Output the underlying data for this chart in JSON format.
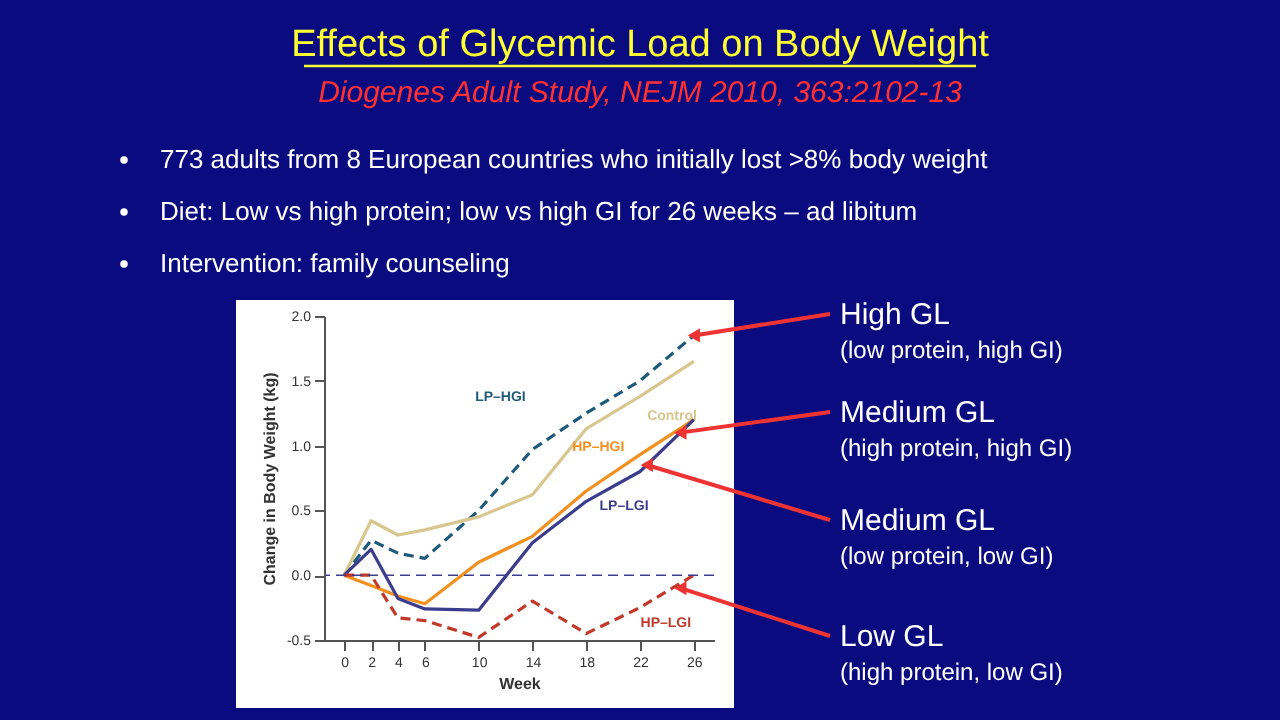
{
  "chart_data": {
    "type": "line",
    "title": "Effects of Glycemic Load on Body Weight",
    "subtitle": "Diogenes Adult Study, NEJM 2010, 363:2102-13",
    "xlabel": "Week",
    "ylabel": "Change in Body Weight (kg)",
    "x": [
      0,
      2,
      4,
      6,
      10,
      14,
      18,
      22,
      26
    ],
    "series": [
      {
        "name": "LP–HGI",
        "color": "#1f5a7a",
        "line_style": "dashed",
        "values": [
          0,
          0.27,
          0.17,
          0.13,
          0.5,
          0.97,
          1.25,
          1.5,
          1.85
        ]
      },
      {
        "name": "Control",
        "color": "#d8c68f",
        "line_style": "solid",
        "values": [
          0,
          0.42,
          0.31,
          0.35,
          0.45,
          0.62,
          1.13,
          1.38,
          1.65
        ]
      },
      {
        "name": "HP–HGI",
        "color": "#f39020",
        "line_style": "solid",
        "values": [
          0,
          -0.08,
          -0.16,
          -0.22,
          0.1,
          0.3,
          0.65,
          0.93,
          1.2
        ]
      },
      {
        "name": "LP–LGI",
        "color": "#3c3c8c",
        "line_style": "solid",
        "values": [
          0,
          0.2,
          -0.18,
          -0.26,
          -0.27,
          0.25,
          0.57,
          0.8,
          1.2
        ]
      },
      {
        "name": "HP–LGI",
        "color": "#c0392b",
        "line_style": "dashed",
        "values": [
          0,
          0,
          -0.33,
          -0.35,
          -0.48,
          -0.2,
          -0.45,
          -0.25,
          0
        ]
      }
    ],
    "xlim": [
      -1.5,
      27.5
    ],
    "ylim": [
      -0.5,
      2.0
    ],
    "xticks": [
      0,
      2,
      4,
      6,
      10,
      14,
      18,
      22,
      26
    ],
    "yticks": [
      {
        "value": -0.5,
        "label": "-0.5"
      },
      {
        "value": 0,
        "label": "0.0"
      },
      {
        "value": 0.5,
        "label": "0.5"
      },
      {
        "value": 1,
        "label": "1.0"
      },
      {
        "value": 1.5,
        "label": "1.5"
      },
      {
        "value": 2,
        "label": "2.0"
      }
    ],
    "ref_lines": [
      {
        "axis": "y",
        "value": 0,
        "color": "#3c3c8c",
        "line_style": "dashed"
      }
    ],
    "grid": false,
    "annotations": [
      "773 adults from 8 European countries who initially lost >8% body weight",
      "Diet: Low vs high protein; low vs high GI for 26 weeks – ad libitum",
      "Intervention: family counseling",
      {
        "text": "High GL\n(low protein, high GI)",
        "x": 26,
        "y": 1.85
      },
      {
        "text": "Medium GL\n(high protein, high GI)",
        "x": 25,
        "y": 1.1
      },
      {
        "text": "Medium GL\n(low protein, low GI)",
        "x": 22.5,
        "y": 0.85
      },
      {
        "text": "Low GL\n(high protein, low GI)",
        "x": 25,
        "y": -0.1
      }
    ]
  }
}
